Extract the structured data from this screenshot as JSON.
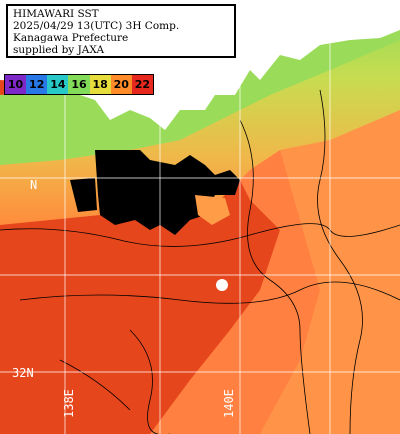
{
  "header": {
    "line1": "HIMAWARI SST",
    "line2": "2025/04/29 13(UTC) 3H Comp.",
    "line3": "Kanagawa Prefecture",
    "line4": "supplied by JAXA"
  },
  "legend": {
    "items": [
      {
        "label": "10",
        "color": "#7f28c8"
      },
      {
        "label": "12",
        "color": "#2878e6"
      },
      {
        "label": "14",
        "color": "#28c8c8"
      },
      {
        "label": "16",
        "color": "#82dc5a"
      },
      {
        "label": "18",
        "color": "#e6dc3c"
      },
      {
        "label": "20",
        "color": "#ff8c28"
      },
      {
        "label": "22",
        "color": "#e6281e"
      }
    ]
  },
  "grid_labels": {
    "lat_n": "N",
    "lat_32": "32N",
    "lon_138": "138E",
    "lon_140": "140E"
  },
  "colors": {
    "land": "#ffffff",
    "cloud": "#000000",
    "sea_warm": "#e6461c",
    "sea_mid": "#ff8c3c",
    "sea_cool": "#f0c050",
    "sea_green": "#a0dc5a",
    "gridline": "#ffffff"
  }
}
